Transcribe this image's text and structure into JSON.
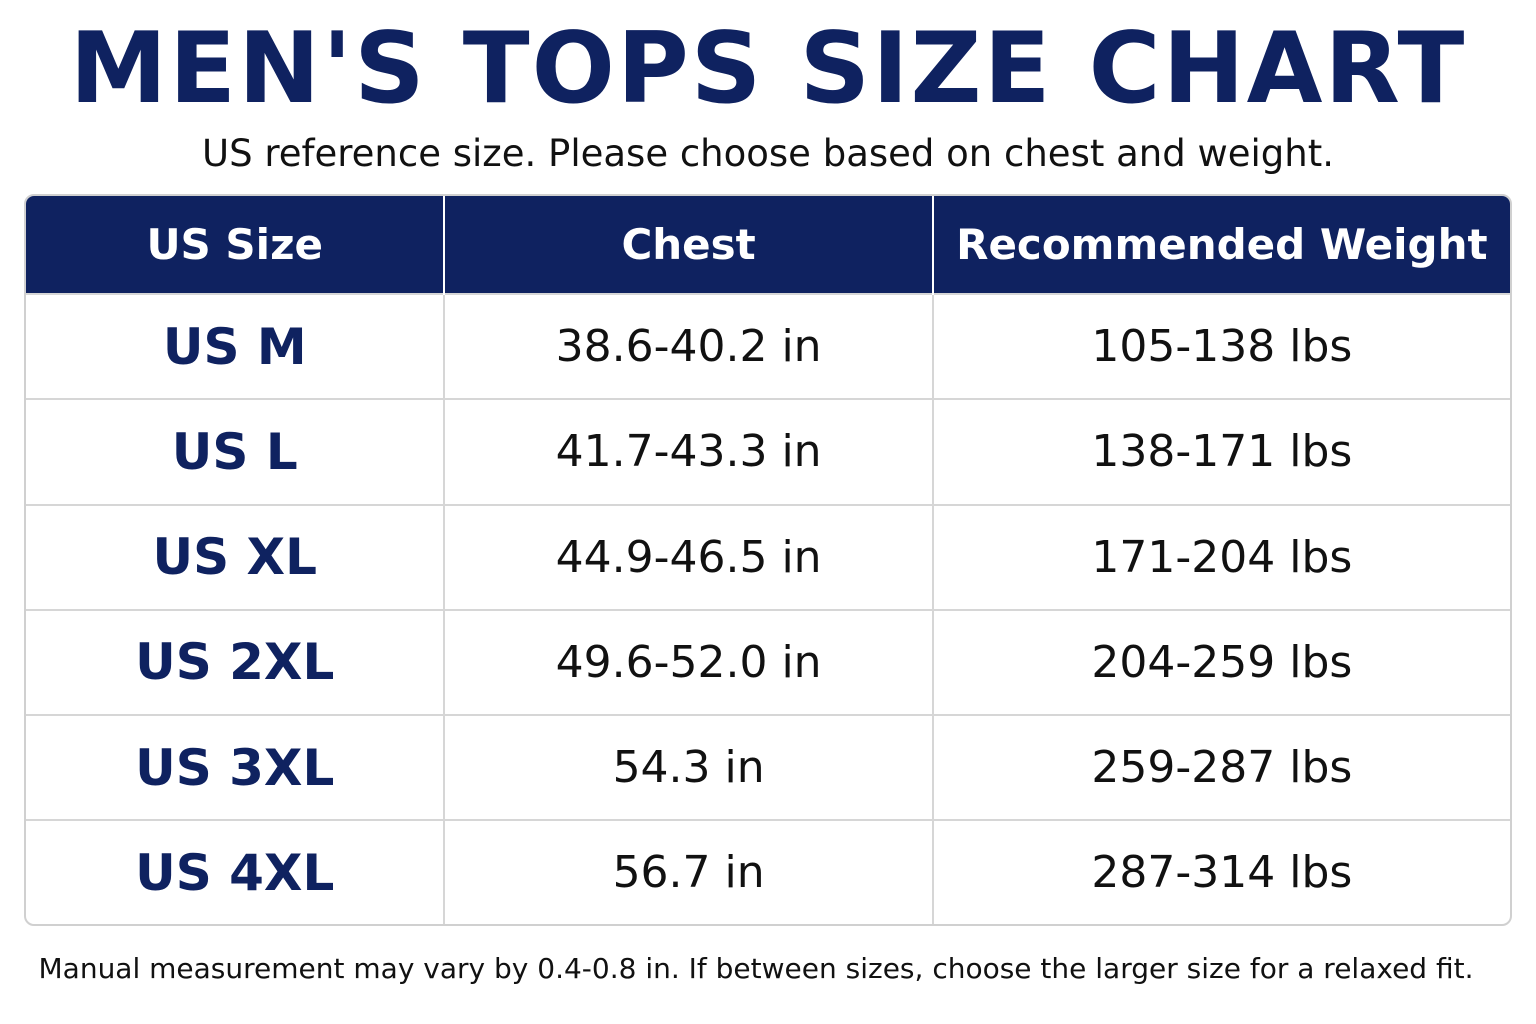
{
  "header": {
    "title": "MEN'S TOPS SIZE CHART",
    "subtitle": "US reference size. Please choose based on chest and weight."
  },
  "table": {
    "columns": [
      "US Size",
      "Chest",
      "Recommended Weight"
    ],
    "rows": [
      [
        "US M",
        "38.6-40.2 in",
        "105-138 lbs"
      ],
      [
        "US L",
        "41.7-43.3 in",
        "138-171 lbs"
      ],
      [
        "US XL",
        "44.9-46.5 in",
        "171-204 lbs"
      ],
      [
        "US 2XL",
        "49.6-52.0 in",
        "204-259 lbs"
      ],
      [
        "US 3XL",
        "54.3 in",
        "259-287 lbs"
      ],
      [
        "US 4XL",
        "56.7 in",
        "287-314 lbs"
      ]
    ]
  },
  "footer": {
    "note": "Manual measurement may vary by 0.4-0.8 in. If between sizes, choose the larger size for a relaxed fit."
  }
}
